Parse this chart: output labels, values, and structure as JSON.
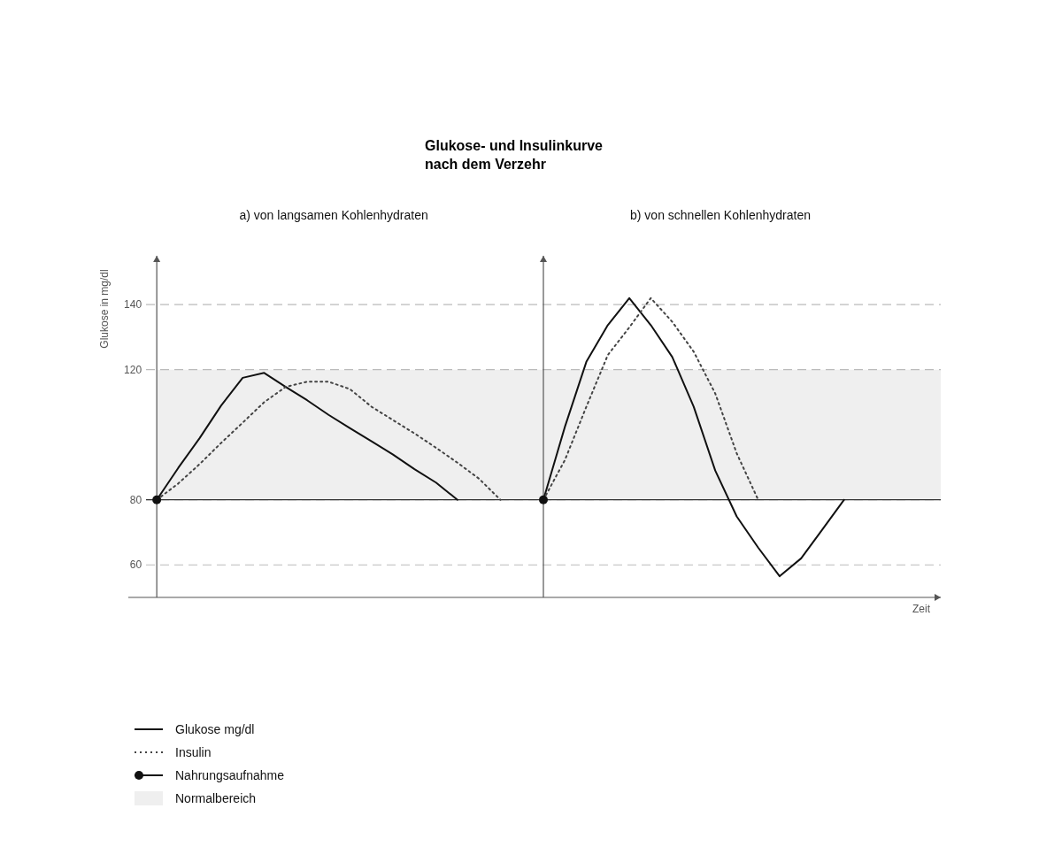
{
  "chart_data": {
    "type": "line",
    "title": "Glukose- und Insulinkurve\nnach dem Verzehr",
    "ylabel": "Glukose in mg/dl",
    "xlabel": "Zeit",
    "annotations": [
      "a) von langsamen Kohlenhydraten",
      "b) von schnellen Kohlenhydraten"
    ],
    "categories": [
      null,
      null,
      null,
      null,
      null,
      null,
      null,
      null,
      null,
      null,
      null,
      null,
      null,
      null,
      null,
      null,
      null,
      null,
      null,
      null,
      null,
      null,
      null,
      null,
      null,
      null,
      null,
      null,
      null,
      null,
      null,
      null,
      null,
      null,
      null,
      null,
      null
    ],
    "series": [
      {
        "name": "Glukose mg/dl",
        "line_style": "solid",
        "color": "#111111",
        "values": [
          80,
          89.8,
          99,
          109,
          117.5,
          119,
          114.7,
          110.6,
          106.1,
          102,
          98,
          93.9,
          89.4,
          85.3,
          80,
          null,
          null,
          null,
          80,
          102.4,
          122.4,
          133.7,
          142,
          133.7,
          123.9,
          108.6,
          89,
          74.9,
          65.3,
          56.5,
          62,
          71,
          80,
          null,
          null,
          null,
          null
        ]
      },
      {
        "name": "Insulin",
        "line_style": "dotted",
        "color": "#444444",
        "values": [
          80,
          85,
          91,
          97.5,
          103.7,
          110,
          114.7,
          116.3,
          116.3,
          114,
          108.6,
          104.5,
          100.4,
          96,
          91.4,
          86.5,
          80,
          null,
          80,
          92.2,
          108.6,
          124.5,
          133,
          142,
          134.7,
          125.5,
          112.7,
          94.3,
          80,
          null,
          null,
          null,
          null,
          null,
          null,
          null,
          null
        ]
      },
      {
        "name": "Nahrungsaufnahme",
        "type": "scatter",
        "marker": "circle",
        "color": "#111111",
        "values": [
          80,
          null,
          null,
          null,
          null,
          null,
          null,
          null,
          null,
          null,
          null,
          null,
          null,
          null,
          null,
          null,
          null,
          null,
          80,
          null,
          null,
          null,
          null,
          null,
          null,
          null,
          null,
          null,
          null,
          null,
          null,
          null,
          null,
          null,
          null,
          null,
          null
        ]
      }
    ],
    "ylim": [
      50,
      155
    ],
    "yticks": [
      60,
      80,
      120,
      140
    ],
    "grid": "y",
    "tick_labels": "y",
    "legend": "bottom",
    "bands": [
      {
        "axis": "y",
        "from": 80,
        "to": 120,
        "label": "Normalbereich",
        "color": "#efefef"
      }
    ],
    "ref_lines": [
      {
        "axis": "y",
        "value": 80,
        "color": "#333333",
        "line_style": "solid"
      }
    ]
  }
}
